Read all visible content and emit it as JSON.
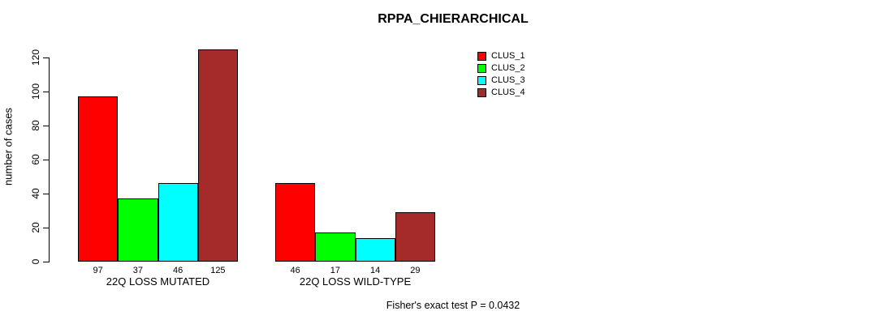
{
  "title": "RPPA_CHIERARCHICAL",
  "footer": {
    "note": "Fisher's exact test P = 0.0432"
  },
  "chart_data": {
    "type": "bar",
    "title": "RPPA_CHIERARCHICAL",
    "xlabel": "",
    "ylabel": "number of cases",
    "ylim": [
      0,
      130
    ],
    "yticks": [
      0,
      20,
      40,
      60,
      80,
      100,
      120
    ],
    "grid": false,
    "legend_position": "top-right",
    "bar_value_labels": true,
    "categories": [
      "22Q LOSS MUTATED",
      "22Q LOSS WILD-TYPE"
    ],
    "series": [
      {
        "name": "CLUS_1",
        "color": "#FF0000",
        "values": [
          97,
          46
        ]
      },
      {
        "name": "CLUS_2",
        "color": "#00FF00",
        "values": [
          37,
          17
        ]
      },
      {
        "name": "CLUS_3",
        "color": "#00FFFF",
        "values": [
          46,
          14
        ]
      },
      {
        "name": "CLUS_4",
        "color": "#A52A2A",
        "values": [
          125,
          29
        ]
      }
    ],
    "annotation": "Fisher's exact test P = 0.0432"
  }
}
